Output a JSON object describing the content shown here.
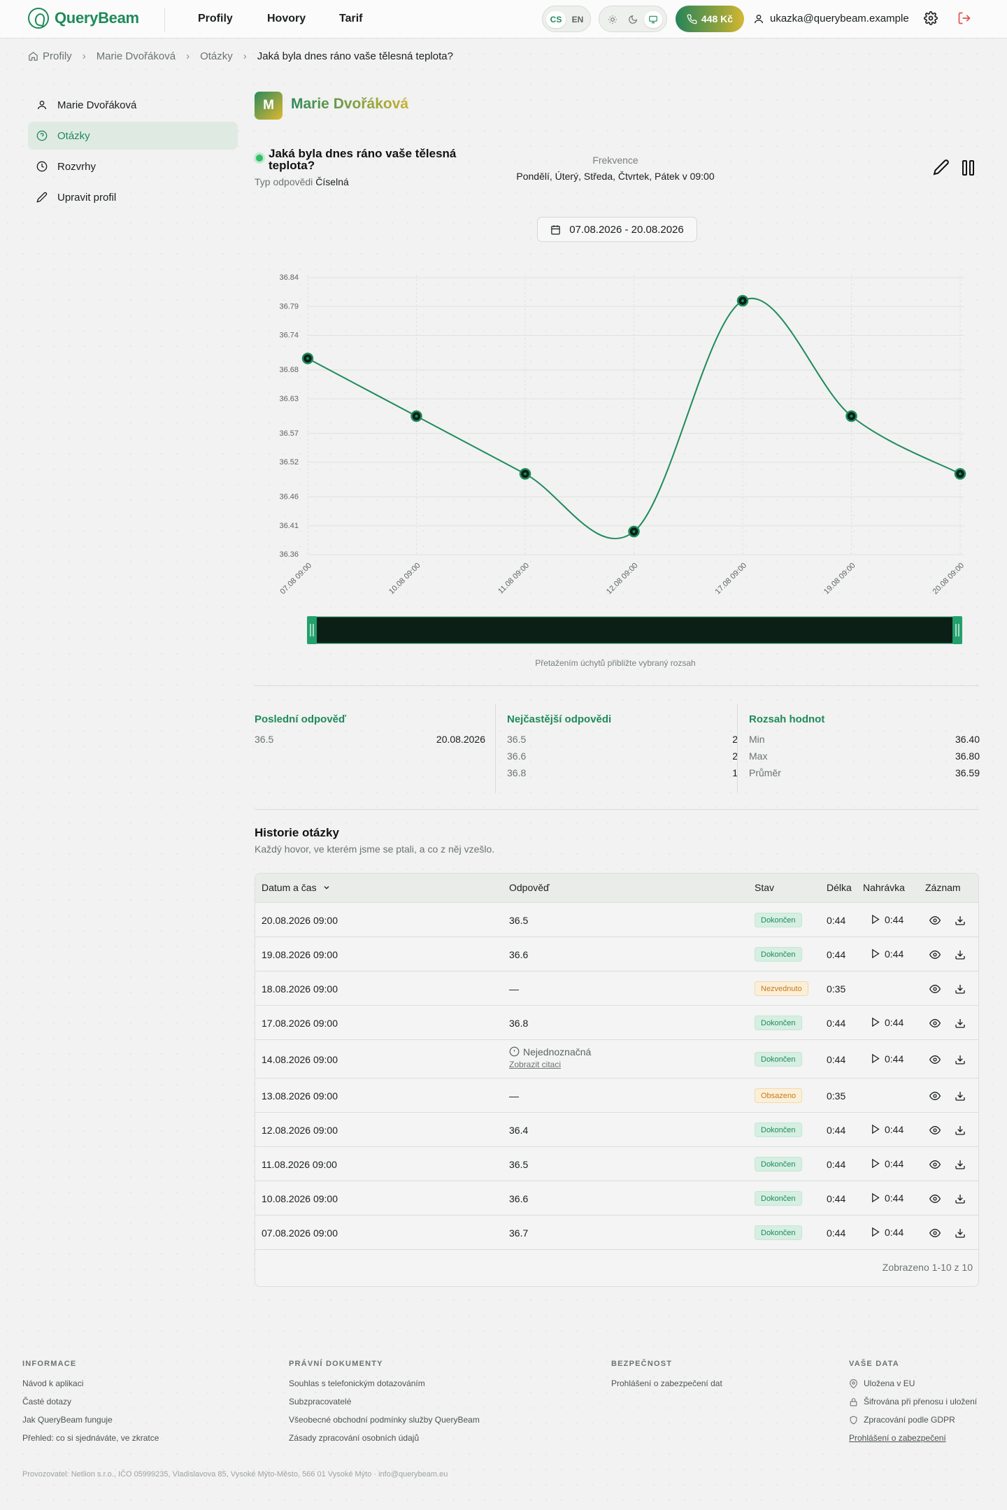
{
  "header": {
    "logo_text": "QueryBeam",
    "nav": [
      "Profily",
      "Hovory",
      "Tarif"
    ],
    "languages": [
      "CS",
      "EN"
    ],
    "active_language": "CS",
    "theme_options": [
      "sun-icon",
      "moon-icon",
      "monitor-icon"
    ],
    "active_theme": "monitor-icon",
    "credit": "448 Kč",
    "user_email": "ukazka@querybeam.example"
  },
  "breadcrumb": [
    "Profily",
    "Marie Dvořáková",
    "Otázky",
    "Jaká byla dnes ráno vaše tělesná teplota?"
  ],
  "sidebar": [
    {
      "label": "Marie Dvořáková",
      "icon": "user-icon"
    },
    {
      "label": "Otázky",
      "icon": "question-circle-icon",
      "active": true
    },
    {
      "label": "Rozvrhy",
      "icon": "clock-icon"
    },
    {
      "label": "Upravit profil",
      "icon": "pencil-icon"
    }
  ],
  "profile": {
    "initial": "M",
    "name": "Marie Dvořáková"
  },
  "question": {
    "title": "Jaká byla dnes ráno vaše tělesná teplota?",
    "type_label": "Typ odpovědi",
    "type_value": "Číselná",
    "frequency_label": "Frekvence",
    "frequency_value": "Pondělí, Úterý, Středa, Čtvrtek, Pátek v 09:00"
  },
  "date_range": "07.08.2026 - 20.08.2026",
  "chart_data": {
    "type": "line",
    "x": [
      "07.08 09:00",
      "10.08 09:00",
      "11.08 09:00",
      "12.08 09:00",
      "17.08 09:00",
      "19.08 09:00",
      "20.08 09:00"
    ],
    "values": [
      36.7,
      36.6,
      36.5,
      36.4,
      36.8,
      36.6,
      36.5
    ],
    "y_ticks": [
      "36.84",
      "36.79",
      "36.74",
      "36.68",
      "36.63",
      "36.57",
      "36.52",
      "36.46",
      "36.41",
      "36.36"
    ],
    "ylim": [
      36.36,
      36.84
    ],
    "grid": true,
    "line_color": "#1f8a5b",
    "brush_hint": "Přetažením úchytů přibližte vybraný rozsah"
  },
  "stats": {
    "last": {
      "title": "Poslední odpověď",
      "value": "36.5",
      "date": "20.08.2026"
    },
    "frequent": {
      "title": "Nejčastější odpovědi",
      "rows": [
        [
          "36.5",
          "2"
        ],
        [
          "36.6",
          "2"
        ],
        [
          "36.8",
          "1"
        ]
      ]
    },
    "range": {
      "title": "Rozsah hodnot",
      "rows": [
        [
          "Min",
          "36.40"
        ],
        [
          "Max",
          "36.80"
        ],
        [
          "Průměr",
          "36.59"
        ]
      ]
    }
  },
  "history": {
    "title": "Historie otázky",
    "subtitle": "Každý hovor, ve kterém jsme se ptali, a co z něj vzešlo.",
    "columns": [
      "Datum a čas",
      "Odpověď",
      "Stav",
      "Délka",
      "Nahrávka",
      "Záznam"
    ],
    "rows": [
      {
        "date": "20.08.2026 09:00",
        "answer": "36.5",
        "status": "Dokončen",
        "status_kind": "ok",
        "length": "0:44",
        "recording": "0:44"
      },
      {
        "date": "19.08.2026 09:00",
        "answer": "36.6",
        "status": "Dokončen",
        "status_kind": "ok",
        "length": "0:44",
        "recording": "0:44"
      },
      {
        "date": "18.08.2026 09:00",
        "answer": "—",
        "status": "Nezvednuto",
        "status_kind": "warn",
        "length": "0:35",
        "recording": ""
      },
      {
        "date": "17.08.2026 09:00",
        "answer": "36.8",
        "status": "Dokončen",
        "status_kind": "ok",
        "length": "0:44",
        "recording": "0:44"
      },
      {
        "date": "14.08.2026 09:00",
        "answer": "Nejednoznačná",
        "answer_link": "Zobrazit citaci",
        "status": "Dokončen",
        "status_kind": "ok",
        "length": "0:44",
        "recording": "0:44"
      },
      {
        "date": "13.08.2026 09:00",
        "answer": "—",
        "status": "Obsazeno",
        "status_kind": "warn",
        "length": "0:35",
        "recording": ""
      },
      {
        "date": "12.08.2026 09:00",
        "answer": "36.4",
        "status": "Dokončen",
        "status_kind": "ok",
        "length": "0:44",
        "recording": "0:44"
      },
      {
        "date": "11.08.2026 09:00",
        "answer": "36.5",
        "status": "Dokončen",
        "status_kind": "ok",
        "length": "0:44",
        "recording": "0:44"
      },
      {
        "date": "10.08.2026 09:00",
        "answer": "36.6",
        "status": "Dokončen",
        "status_kind": "ok",
        "length": "0:44",
        "recording": "0:44"
      },
      {
        "date": "07.08.2026 09:00",
        "answer": "36.7",
        "status": "Dokončen",
        "status_kind": "ok",
        "length": "0:44",
        "recording": "0:44"
      }
    ],
    "footer": "Zobrazeno 1-10 z 10"
  },
  "footer": {
    "columns": [
      {
        "title": "INFORMACE",
        "links": [
          "Návod k aplikaci",
          "Časté dotazy",
          "Jak QueryBeam funguje",
          "Přehled: co si sjednáváte, ve zkratce"
        ]
      },
      {
        "title": "PRÁVNÍ DOKUMENTY",
        "links": [
          "Souhlas s telefonickým dotazováním",
          "Subzpracovatelé",
          "Všeobecné obchodní podmínky služby QueryBeam",
          "Zásady zpracování osobních údajů"
        ]
      },
      {
        "title": "BEZPEČNOST",
        "links": [
          "Prohlášení o zabezpečení dat"
        ]
      },
      {
        "title": "VAŠE DATA",
        "links": [
          "Uložena v EU",
          "Šifrována při přenosu i uložení",
          "Zpracování podle GDPR",
          "Prohlášení o zabezpečení"
        ]
      }
    ],
    "copyright": "Provozovatel: Netlion s.r.o., IČO 05999235, Vladislavova 85, Vysoké Mýto-Město, 566 01 Vysoké Mýto · info@querybeam.eu"
  },
  "colors": {
    "accent": "#1f8a5b",
    "warning": "#c87a17",
    "brush_fill": "#0b1f17"
  }
}
